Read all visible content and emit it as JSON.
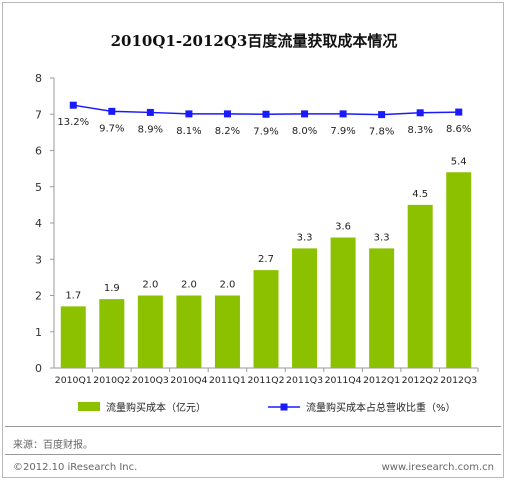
{
  "title": "2010Q1-2012Q3百度流量获取成本情况",
  "source": "来源：百度财报。",
  "copyright": "©2012.10 iResearch Inc.",
  "website": "www.iresearch.com.cn",
  "colors": {
    "bar": "#8cc100",
    "line": "#1a1aff",
    "marker": "#1a1aff",
    "axis": "#9a9a9a"
  },
  "chart_data": {
    "type": "bar",
    "categories": [
      "2010Q1",
      "2010Q2",
      "2010Q3",
      "2010Q4",
      "2011Q1",
      "2011Q2",
      "2011Q3",
      "2011Q4",
      "2012Q1",
      "2012Q2",
      "2012Q3"
    ],
    "ylim": [
      0,
      8
    ],
    "yticks": [
      "0",
      "1",
      "2",
      "3",
      "4",
      "5",
      "6",
      "7",
      "8"
    ],
    "series": [
      {
        "name": "流量购买成本（亿元）",
        "type": "bar",
        "values": [
          1.7,
          1.9,
          2.0,
          2.0,
          2.0,
          2.7,
          3.3,
          3.6,
          3.3,
          4.5,
          5.4
        ],
        "labels": [
          "1.7",
          "1.9",
          "2.0",
          "2.0",
          "2.0",
          "2.7",
          "3.3",
          "3.6",
          "3.3",
          "4.5",
          "5.4"
        ]
      },
      {
        "name": "流量购买成本占总营收比重（%）",
        "type": "line",
        "values": [
          7.25,
          7.08,
          7.05,
          7.01,
          7.01,
          7.0,
          7.01,
          7.01,
          6.99,
          7.04,
          7.06
        ],
        "labels": [
          "13.2%",
          "9.7%",
          "8.9%",
          "8.1%",
          "8.2%",
          "7.9%",
          "8.0%",
          "7.9%",
          "7.8%",
          "8.3%",
          "8.6%"
        ]
      }
    ],
    "legend_position": "bottom"
  }
}
